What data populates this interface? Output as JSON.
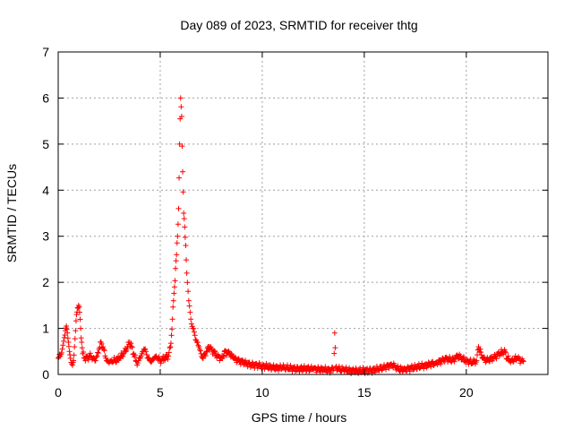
{
  "chart_data": {
    "type": "scatter",
    "title": "Day 089 of 2023, SRMTID for receiver thtg",
    "xlabel": "GPS time / hours",
    "ylabel": "SRMTID / TECUs",
    "xlim": [
      0,
      24
    ],
    "ylim": [
      0,
      7
    ],
    "xticks": [
      0,
      5,
      10,
      15,
      20
    ],
    "xtick_labels": [
      "0",
      "5",
      "10",
      "15",
      "20"
    ],
    "yticks": [
      0,
      1,
      2,
      3,
      4,
      5,
      6,
      7
    ],
    "ytick_labels": [
      "0",
      "1",
      "2",
      "3",
      "4",
      "5",
      "6",
      "7"
    ],
    "grid": true,
    "marker": "+",
    "color": "#ff0000",
    "series": [
      {
        "name": "SRMTID",
        "x": [
          0.0,
          0.1,
          0.2,
          0.3,
          0.35,
          0.4,
          0.45,
          0.5,
          0.55,
          0.6,
          0.7,
          0.75,
          0.8,
          0.85,
          0.9,
          0.95,
          1.0,
          1.05,
          1.1,
          1.15,
          1.2,
          1.3,
          1.6,
          1.7,
          1.8,
          1.9,
          2.0,
          2.1,
          2.2,
          2.3,
          2.4,
          2.5,
          2.6,
          2.8,
          3.0,
          3.2,
          3.4,
          3.5,
          3.6,
          3.7,
          3.8,
          3.9,
          4.0,
          4.1,
          4.2,
          4.3,
          4.4,
          4.5,
          4.6,
          4.7,
          4.8,
          5.0,
          5.2,
          5.4,
          5.5,
          5.55,
          5.6,
          5.65,
          5.7,
          5.75,
          5.8,
          5.85,
          5.9,
          5.95,
          6.0,
          6.05,
          6.1,
          6.15,
          6.2,
          6.25,
          6.3,
          6.4,
          6.5,
          6.6,
          6.7,
          6.8,
          6.9,
          7.0,
          7.1,
          7.2,
          7.4,
          7.6,
          7.8,
          8.0,
          8.2,
          8.4,
          8.6,
          8.8,
          9.0,
          9.2,
          9.4,
          9.6,
          9.8,
          10.0,
          10.5,
          11.0,
          11.5,
          12.0,
          12.5,
          13.0,
          13.3,
          13.5,
          13.55,
          13.6,
          13.8,
          14.0,
          14.5,
          15.0,
          15.5,
          16.0,
          16.3,
          16.5,
          16.7,
          17.0,
          17.5,
          18.0,
          18.5,
          18.8,
          19.0,
          19.3,
          19.6,
          20.0,
          20.3,
          20.5,
          20.6,
          20.8,
          21.0,
          21.3,
          21.6,
          21.9,
          22.0,
          22.2,
          22.5,
          22.7,
          22.8
        ],
        "y": [
          0.35,
          0.4,
          0.55,
          0.8,
          0.95,
          1.05,
          0.9,
          0.7,
          0.5,
          0.35,
          0.2,
          0.3,
          0.6,
          0.95,
          1.3,
          1.45,
          1.5,
          1.35,
          1.0,
          0.7,
          0.45,
          0.35,
          0.4,
          0.35,
          0.3,
          0.4,
          0.55,
          0.7,
          0.6,
          0.4,
          0.3,
          0.25,
          0.3,
          0.3,
          0.35,
          0.45,
          0.6,
          0.7,
          0.6,
          0.45,
          0.3,
          0.25,
          0.35,
          0.45,
          0.55,
          0.5,
          0.35,
          0.3,
          0.3,
          0.35,
          0.4,
          0.3,
          0.35,
          0.4,
          0.6,
          0.85,
          1.2,
          1.6,
          1.9,
          2.3,
          2.6,
          3.0,
          3.6,
          5.0,
          6.0,
          5.6,
          4.4,
          3.5,
          3.2,
          2.8,
          2.2,
          1.6,
          1.2,
          1.0,
          0.85,
          0.7,
          0.6,
          0.45,
          0.35,
          0.45,
          0.6,
          0.5,
          0.4,
          0.35,
          0.5,
          0.45,
          0.35,
          0.3,
          0.28,
          0.25,
          0.22,
          0.2,
          0.2,
          0.18,
          0.15,
          0.15,
          0.13,
          0.12,
          0.12,
          0.1,
          0.1,
          0.12,
          0.9,
          0.15,
          0.1,
          0.1,
          0.08,
          0.08,
          0.1,
          0.15,
          0.22,
          0.18,
          0.1,
          0.12,
          0.15,
          0.2,
          0.25,
          0.3,
          0.35,
          0.3,
          0.4,
          0.3,
          0.25,
          0.3,
          0.6,
          0.35,
          0.3,
          0.35,
          0.45,
          0.5,
          0.35,
          0.3,
          0.35,
          0.3,
          0.28
        ]
      }
    ]
  }
}
